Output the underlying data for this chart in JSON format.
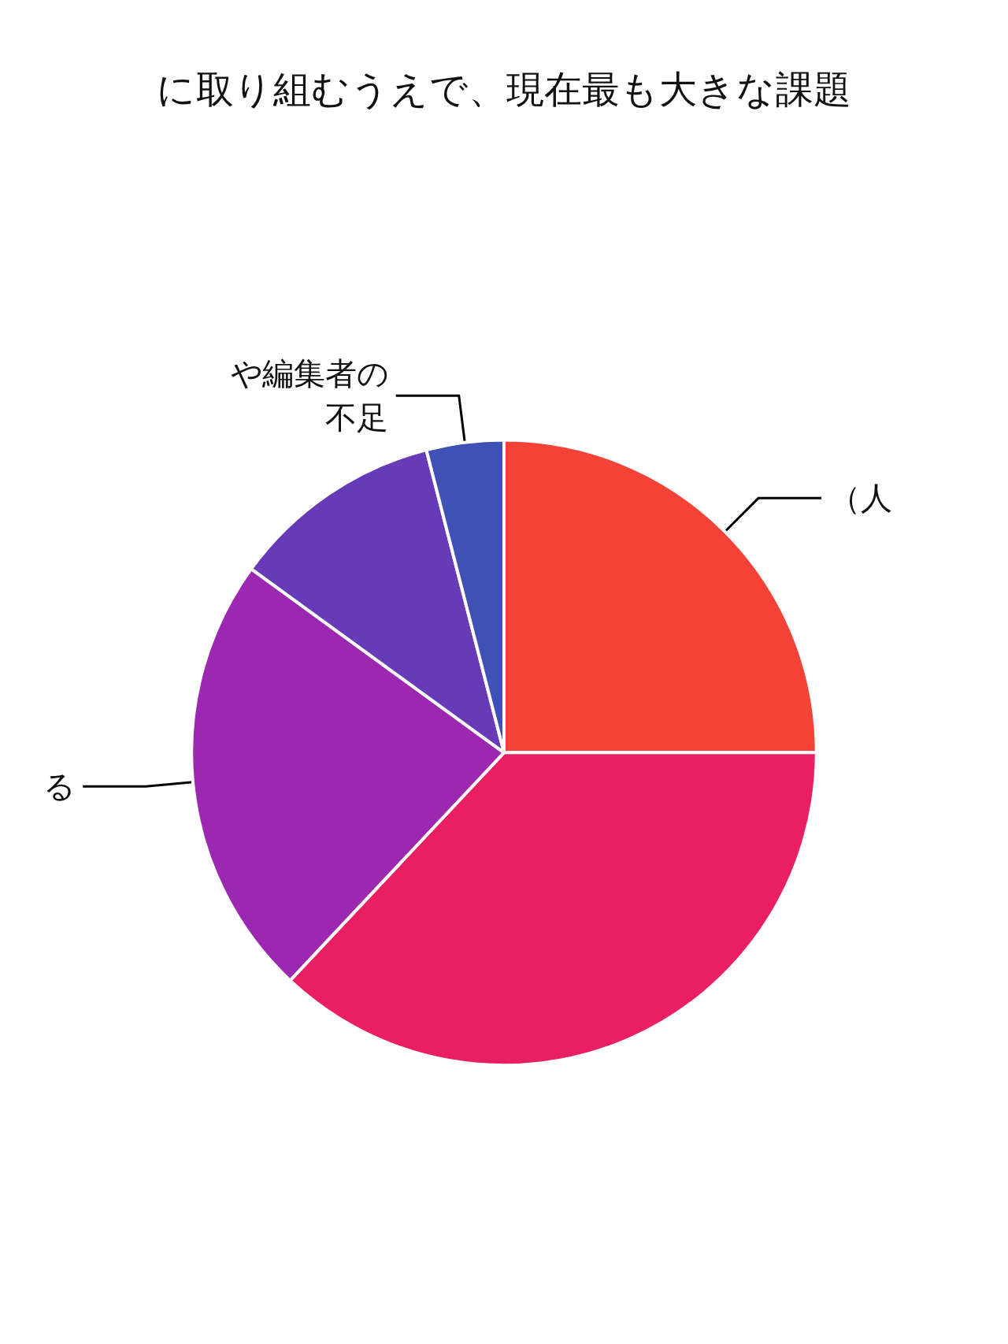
{
  "chart_data": {
    "type": "pie",
    "title": "に取り組むうえで、現在最も大きな課題",
    "categories": [
      "（人",
      null,
      "る",
      null,
      "や編集者の不足"
    ],
    "values": [
      25,
      37,
      23,
      11,
      4
    ],
    "colors": [
      "#f44336",
      "#e91e63",
      "#9c27b0",
      "#673ab7",
      "#3f51b5"
    ]
  }
}
